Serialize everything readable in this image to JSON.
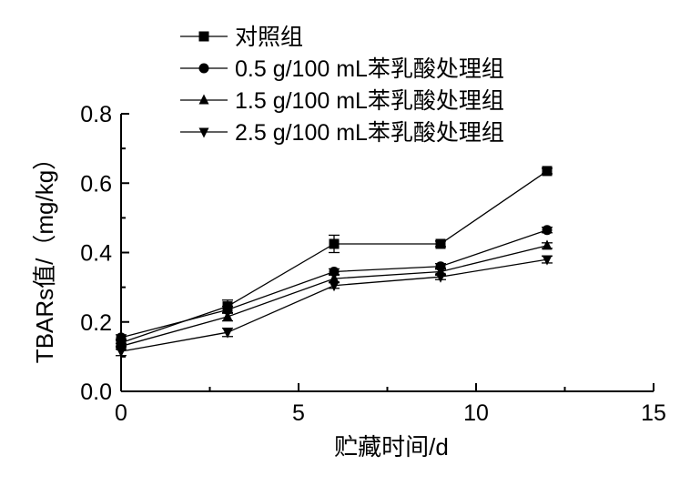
{
  "chart_data": {
    "type": "line",
    "xlabel": "贮藏时间/d",
    "ylabel": "TBARs值/（mg/kg）",
    "xlim": [
      0,
      15
    ],
    "ylim": [
      0,
      0.8
    ],
    "xticks": [
      "0",
      "5",
      "10",
      "15"
    ],
    "yticks": [
      "0.0",
      "0.2",
      "0.4",
      "0.6",
      "0.8"
    ],
    "grid": false,
    "legend_position": "top-left",
    "x": [
      0,
      3,
      6,
      9,
      12
    ],
    "series": [
      {
        "name": "对照组",
        "marker": "square",
        "values": [
          0.14,
          0.245,
          0.425,
          0.425,
          0.635
        ],
        "errors": [
          0.01,
          0.018,
          0.025,
          0.008,
          0.008
        ]
      },
      {
        "name": "0.5 g/100 mL苯乳酸处理组",
        "marker": "circle",
        "values": [
          0.155,
          0.235,
          0.345,
          0.36,
          0.465
        ],
        "errors": [
          0.008,
          0.01,
          0.008,
          0.008,
          0.008
        ]
      },
      {
        "name": "1.5 g/100 mL苯乳酸处理组",
        "marker": "triangle-up",
        "values": [
          0.13,
          0.215,
          0.325,
          0.345,
          0.42
        ],
        "errors": [
          0.008,
          0.012,
          0.01,
          0.01,
          0.008
        ]
      },
      {
        "name": "2.5 g/100 mL苯乳酸处理组",
        "marker": "triangle-down",
        "values": [
          0.115,
          0.17,
          0.305,
          0.33,
          0.38
        ],
        "errors": [
          0.012,
          0.012,
          0.008,
          0.008,
          0.01
        ]
      }
    ]
  }
}
